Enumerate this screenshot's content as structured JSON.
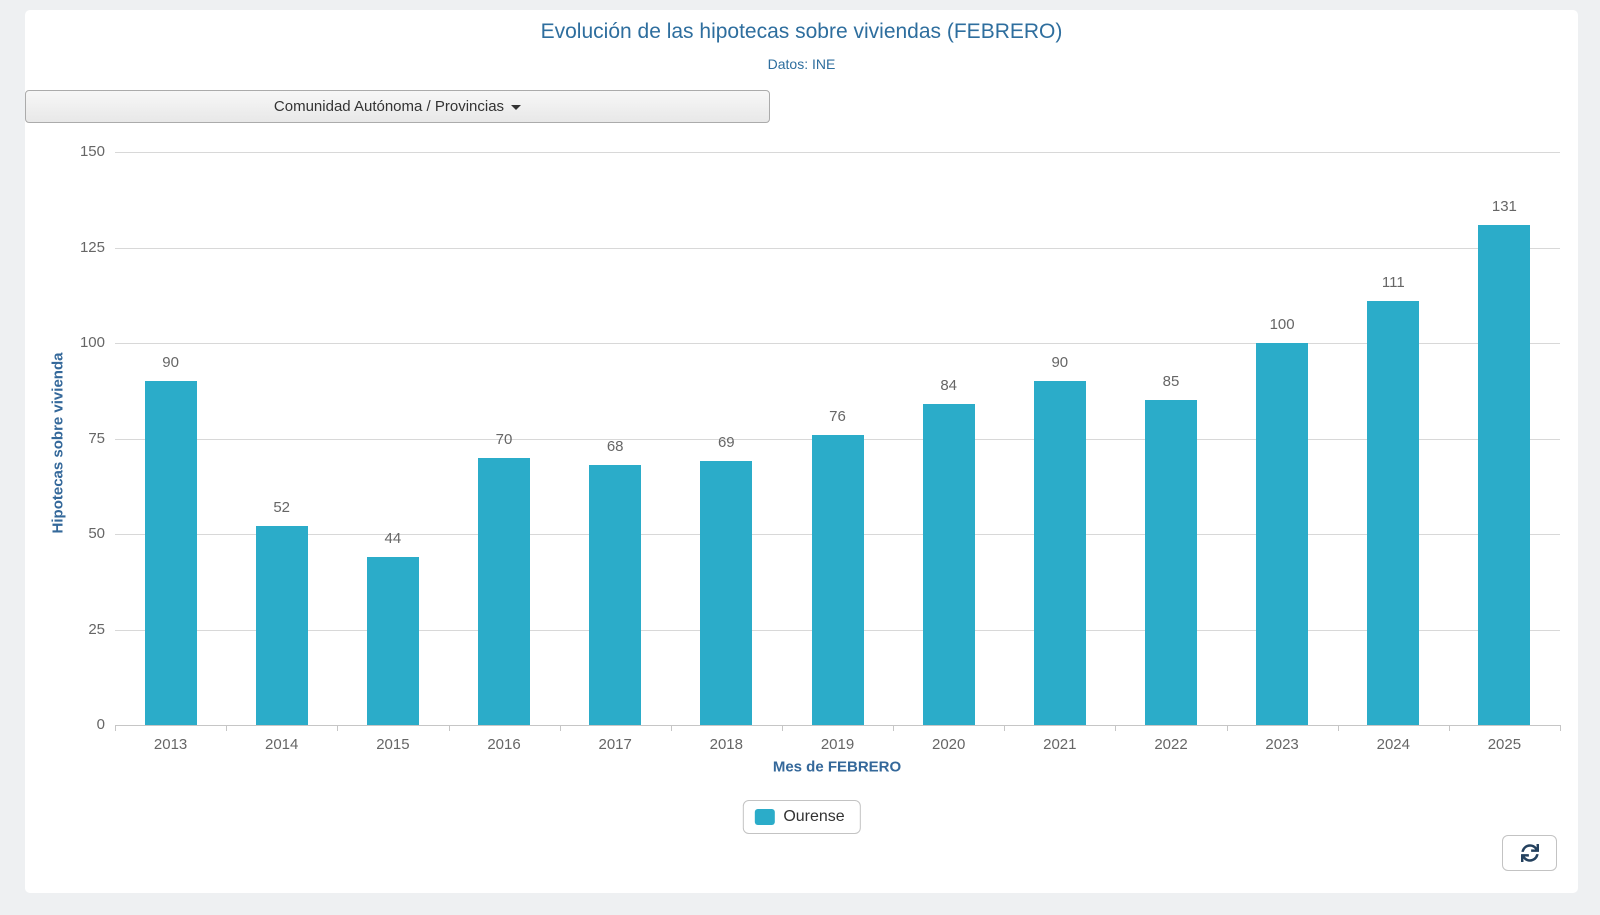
{
  "header": {
    "title": "Evolución de las hipotecas sobre viviendas (FEBRERO)",
    "subtitle": "Datos: INE"
  },
  "controls": {
    "region_selector_label": "Comunidad Autónoma / Provincias",
    "refresh_icon": "refresh"
  },
  "legend": {
    "items": [
      {
        "label": "Ourense",
        "color": "#2bacc9"
      }
    ]
  },
  "colors": {
    "bar": "#2bacc9",
    "heading_blue": "#2e6e9e",
    "axis_title_blue": "#34689a",
    "tick_gray": "#666666",
    "gridline": "#d8d8d8",
    "axis_line": "#c6c6c6",
    "page_bg": "#eef0f2",
    "panel_bg": "#ffffff"
  },
  "chart_data": {
    "type": "bar",
    "title": "Evolución de las hipotecas sobre viviendas (FEBRERO)",
    "subtitle": "Datos: INE",
    "categories": [
      "2013",
      "2014",
      "2015",
      "2016",
      "2017",
      "2018",
      "2019",
      "2020",
      "2021",
      "2022",
      "2023",
      "2024",
      "2025"
    ],
    "series": [
      {
        "name": "Ourense",
        "values": [
          90,
          52,
          44,
          70,
          68,
          69,
          76,
          84,
          90,
          85,
          100,
          111,
          131
        ]
      }
    ],
    "xlabel": "Mes de FEBRERO",
    "ylabel": "Hipotecas sobre vivienda",
    "ylim": [
      0,
      150
    ],
    "yticks": [
      0,
      25,
      50,
      75,
      100,
      125,
      150
    ],
    "grid": true,
    "data_labels": true,
    "legend_position": "bottom"
  }
}
